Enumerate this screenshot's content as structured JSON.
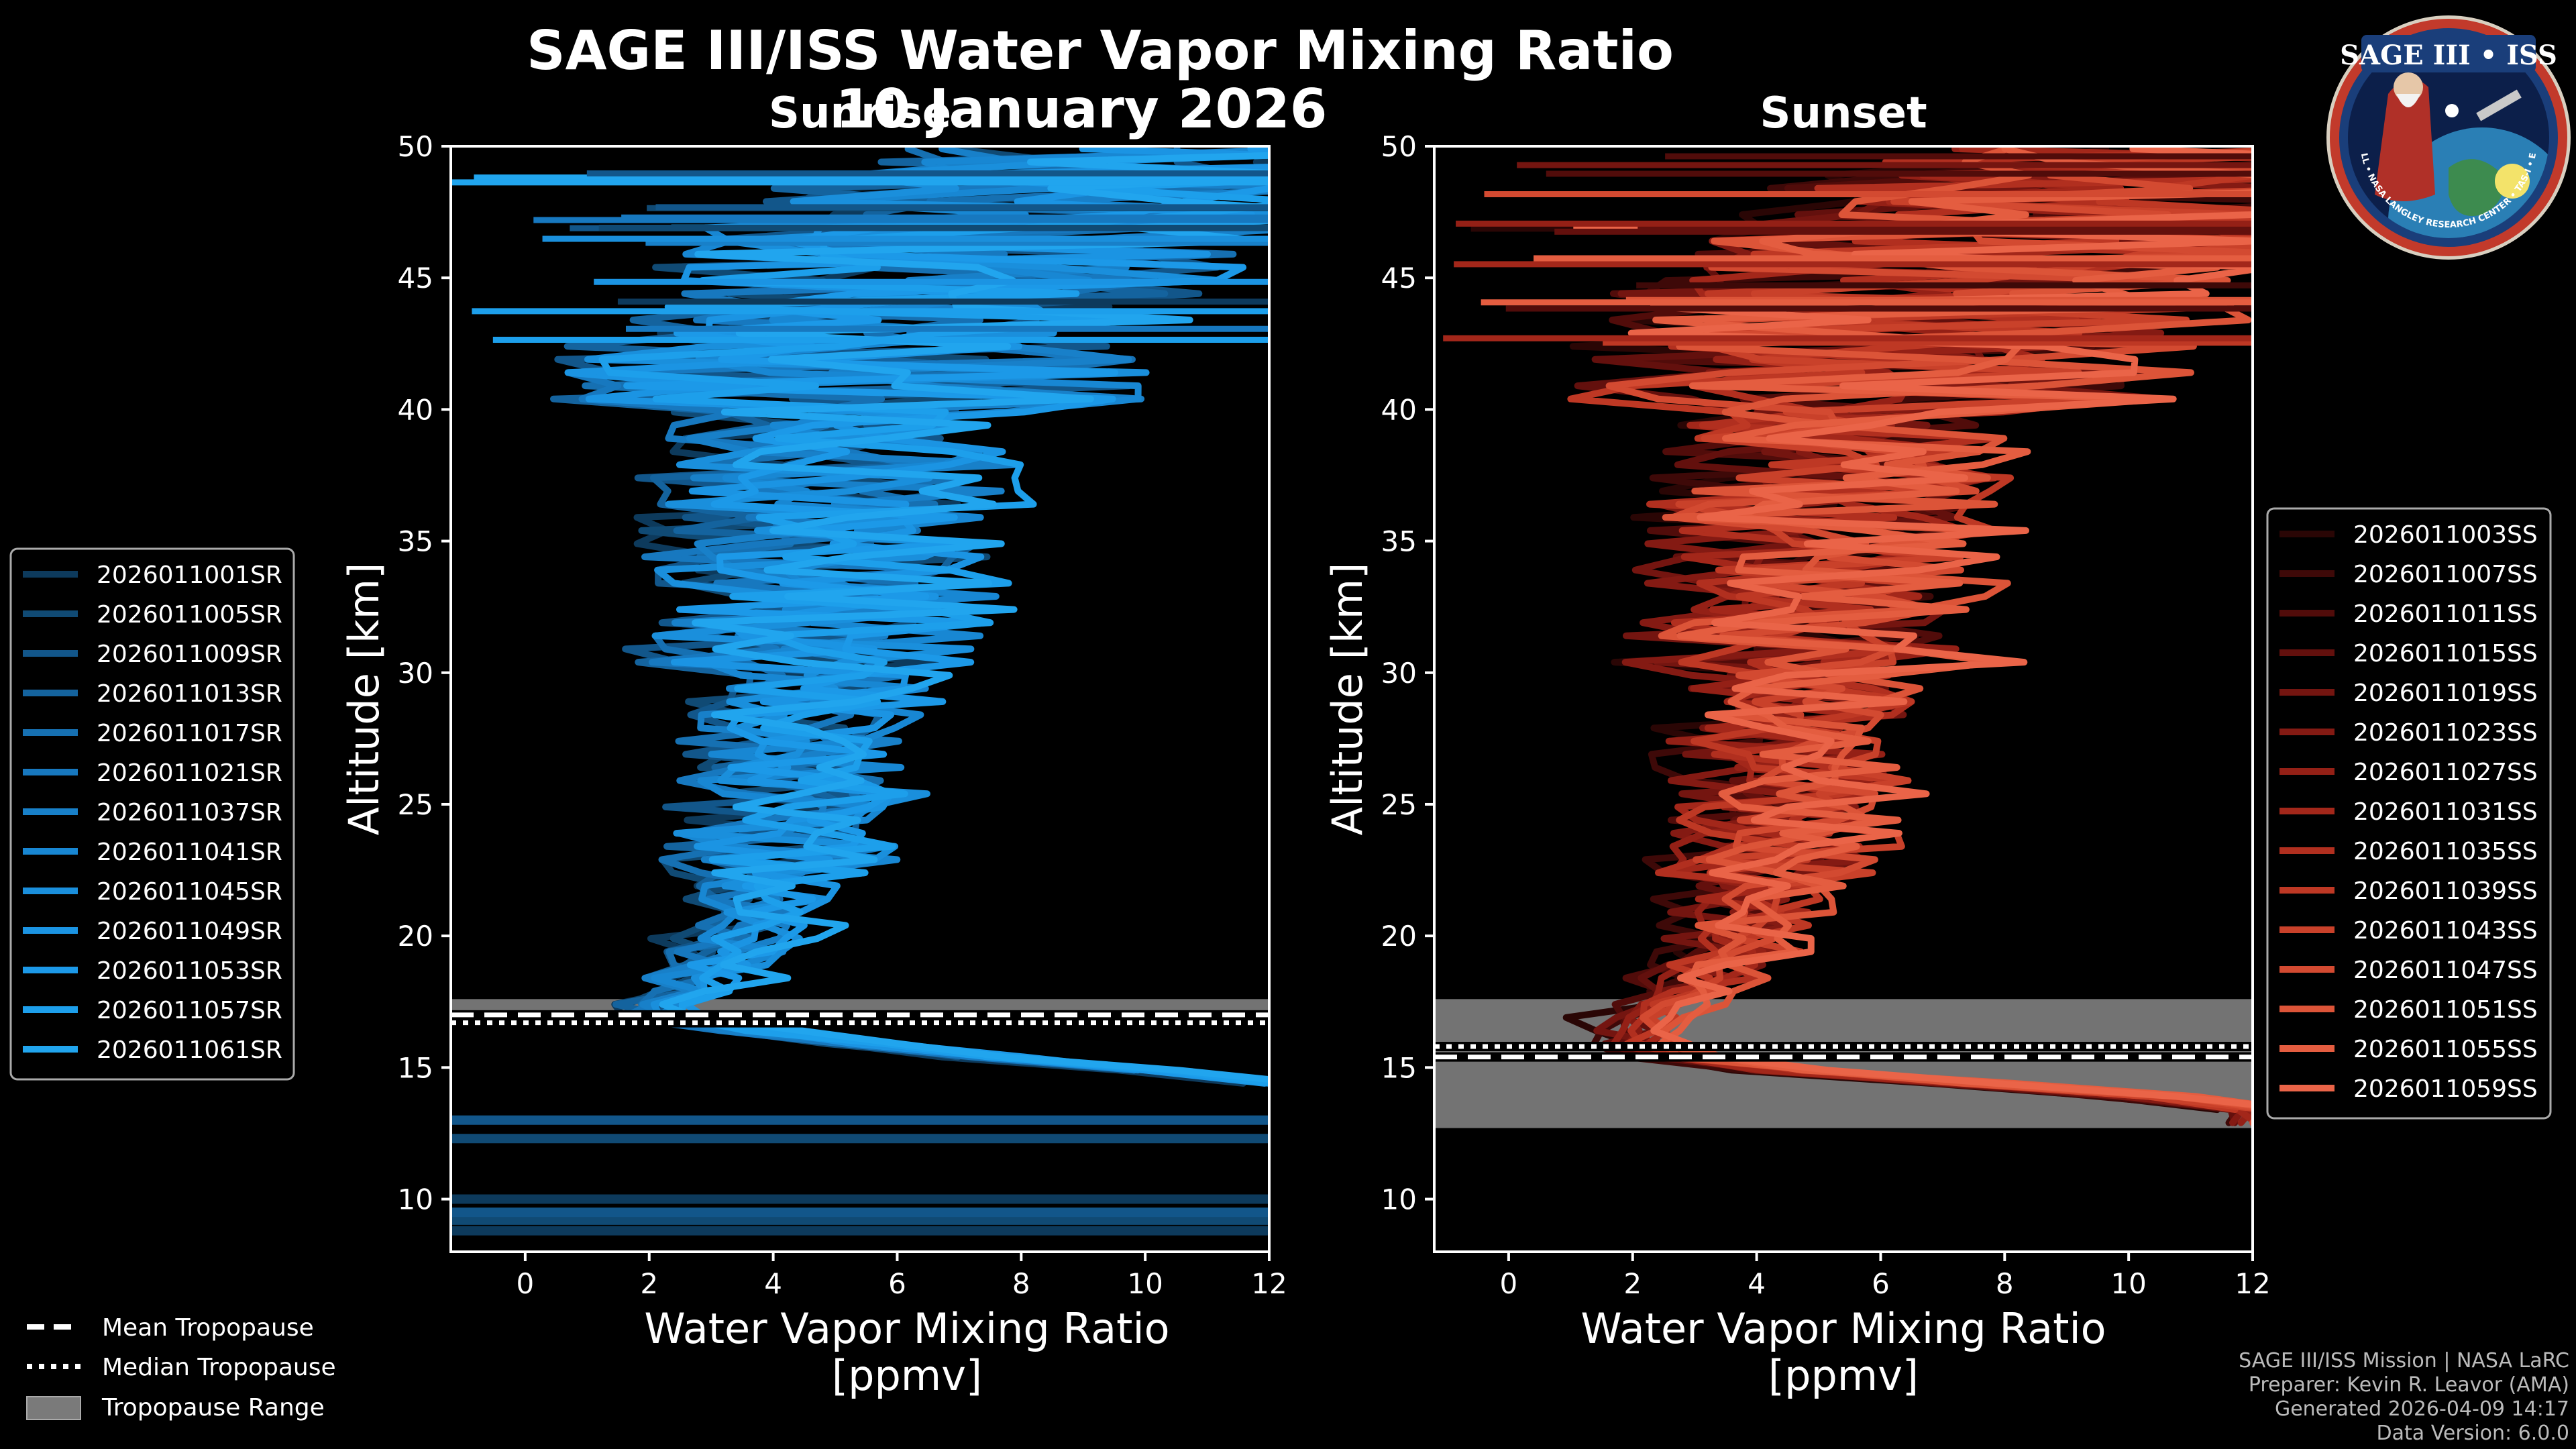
{
  "title": "SAGE III/ISS Water Vapor Mixing Ratio",
  "date": "10 January 2026",
  "chart_data": [
    {
      "type": "line",
      "panel": "sunrise",
      "subtitle": "Sunrise",
      "xlabel_line1": "Water Vapor Mixing Ratio",
      "xlabel_line2": "[ppmv]",
      "ylabel": "Altitude [km]",
      "xlim": [
        -1.2,
        12
      ],
      "ylim": [
        8,
        50
      ],
      "xticks": [
        "0",
        "2",
        "4",
        "6",
        "8",
        "10",
        "12"
      ],
      "yticks": [
        "10",
        "15",
        "20",
        "25",
        "30",
        "35",
        "40",
        "45",
        "50"
      ],
      "legend_position": "left",
      "series_names": [
        "2026011001SR",
        "2026011005SR",
        "2026011009SR",
        "2026011013SR",
        "2026011017SR",
        "2026011021SR",
        "2026011037SR",
        "2026011041SR",
        "2026011045SR",
        "2026011049SR",
        "2026011053SR",
        "2026011057SR",
        "2026011061SR"
      ],
      "series_colors": [
        "#0d3a5c",
        "#104a74",
        "#12568a",
        "#14639e",
        "#1670b2",
        "#1778bf",
        "#1880c9",
        "#1887d3",
        "#1a8fdc",
        "#1b94e3",
        "#1c99e8",
        "#1d9feb",
        "#21a5ee"
      ],
      "profile_median": [
        [
          11.0,
          49.9
        ],
        [
          9.0,
          48
        ],
        [
          7.0,
          46
        ],
        [
          6.0,
          44
        ],
        [
          5.2,
          40
        ],
        [
          5.0,
          35
        ],
        [
          4.7,
          30
        ],
        [
          4.4,
          25
        ],
        [
          3.6,
          20
        ],
        [
          2.6,
          18
        ],
        [
          2.0,
          17.2
        ],
        [
          2.3,
          16.9
        ],
        [
          4.0,
          16.3
        ],
        [
          7.0,
          15.5
        ],
        [
          10.0,
          14.9
        ],
        [
          12.0,
          14.4
        ]
      ],
      "horizontal_bands_km": [
        8.8,
        9.2,
        9.5,
        10.0,
        12.3,
        13.0
      ],
      "tropopause": {
        "mean_km": 17.0,
        "median_km": 16.7,
        "min_km": 16.6,
        "max_km": 17.6
      }
    },
    {
      "type": "line",
      "panel": "sunset",
      "subtitle": "Sunset",
      "xlabel_line1": "Water Vapor Mixing Ratio",
      "xlabel_line2": "[ppmv]",
      "ylabel": "Altitude [km]",
      "xlim": [
        -1.2,
        12
      ],
      "ylim": [
        8,
        50
      ],
      "xticks": [
        "0",
        "2",
        "4",
        "6",
        "8",
        "10",
        "12"
      ],
      "yticks": [
        "10",
        "15",
        "20",
        "25",
        "30",
        "35",
        "40",
        "45",
        "50"
      ],
      "legend_position": "right",
      "series_names": [
        "2026011003SS",
        "2026011007SS",
        "2026011011SS",
        "2026011015SS",
        "2026011019SS",
        "2026011023SS",
        "2026011027SS",
        "2026011031SS",
        "2026011035SS",
        "2026011039SS",
        "2026011043SS",
        "2026011047SS",
        "2026011051SS",
        "2026011055SS",
        "2026011059SS"
      ],
      "series_colors": [
        "#2a0605",
        "#3e0908",
        "#510c0a",
        "#63100d",
        "#741510",
        "#841a13",
        "#942016",
        "#a3271a",
        "#b12f1f",
        "#be3824",
        "#c9412a",
        "#d34a31",
        "#dc5438",
        "#e45d40",
        "#ea6448"
      ],
      "profile_median": [
        [
          11.0,
          49.9
        ],
        [
          9.0,
          48
        ],
        [
          7.0,
          45
        ],
        [
          6.0,
          42
        ],
        [
          5.3,
          38
        ],
        [
          5.0,
          35
        ],
        [
          4.8,
          30
        ],
        [
          4.5,
          25
        ],
        [
          3.8,
          20
        ],
        [
          3.0,
          18
        ],
        [
          2.2,
          17.0
        ],
        [
          2.1,
          16.0
        ],
        [
          3.0,
          15.2
        ],
        [
          5.0,
          14.8
        ],
        [
          8.0,
          14.3
        ],
        [
          12.0,
          13.6
        ]
      ],
      "horizontal_bands_km": [],
      "tropopause": {
        "mean_km": 15.4,
        "median_km": 15.8,
        "min_km": 12.7,
        "max_km": 17.6
      }
    }
  ],
  "tropopause_legend": {
    "mean": "Mean Tropopause",
    "median": "Median Tropopause",
    "range": "Tropopause Range"
  },
  "credits": {
    "line1": "SAGE III/ISS Mission | NASA LaRC",
    "line2": "Preparer: Kevin R. Leavor (AMA)",
    "line3": "Generated 2026-04-09 14:17",
    "line4": "Data Version: 6.0.0"
  },
  "logo": {
    "top_text": "SAGE III • ISS",
    "ring_text": "BALL • NASA LANGLEY RESEARCH CENTER • TAS-I • ESA"
  }
}
